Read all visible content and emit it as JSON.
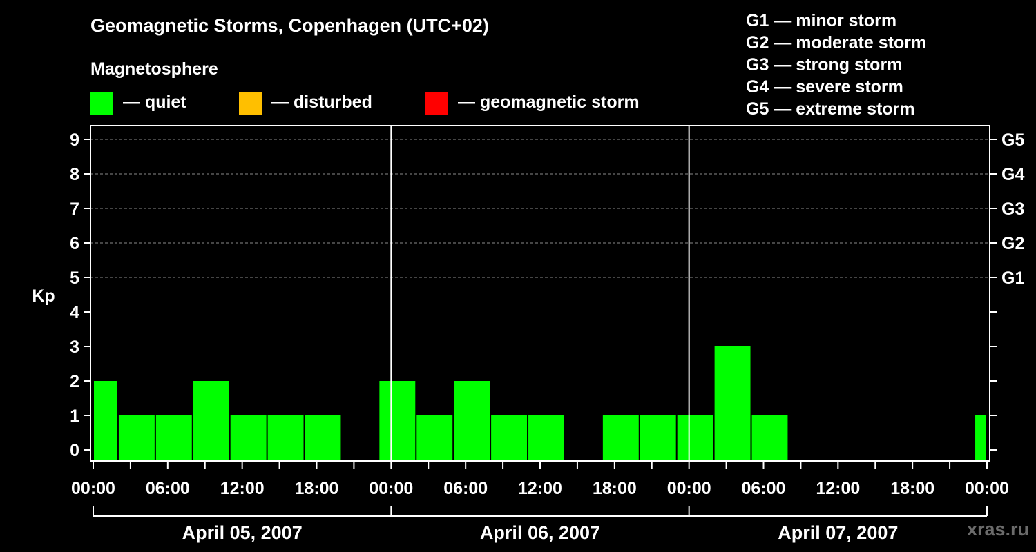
{
  "chart_data": {
    "type": "bar",
    "title": "Geomagnetic Storms, Copenhagen (UTC+02)",
    "subtitle": "Magnetosphere",
    "ylabel": "Kp",
    "ylim": [
      0,
      9
    ],
    "yticks": [
      "0",
      "1",
      "2",
      "3",
      "4",
      "5",
      "6",
      "7",
      "8",
      "9"
    ],
    "g_scale": [
      {
        "kp": 5,
        "label": "G1"
      },
      {
        "kp": 6,
        "label": "G2"
      },
      {
        "kp": 7,
        "label": "G3"
      },
      {
        "kp": 8,
        "label": "G4"
      },
      {
        "kp": 9,
        "label": "G5"
      }
    ],
    "xlim_hours": [
      0,
      72
    ],
    "xticks": [
      {
        "hour": 0,
        "label": "00:00"
      },
      {
        "hour": 6,
        "label": "06:00"
      },
      {
        "hour": 12,
        "label": "12:00"
      },
      {
        "hour": 18,
        "label": "18:00"
      },
      {
        "hour": 24,
        "label": "00:00"
      },
      {
        "hour": 30,
        "label": "06:00"
      },
      {
        "hour": 36,
        "label": "12:00"
      },
      {
        "hour": 42,
        "label": "18:00"
      },
      {
        "hour": 48,
        "label": "00:00"
      },
      {
        "hour": 54,
        "label": "06:00"
      },
      {
        "hour": 60,
        "label": "12:00"
      },
      {
        "hour": 66,
        "label": "18:00"
      },
      {
        "hour": 72,
        "label": "00:00"
      }
    ],
    "days": [
      "April 05, 2007",
      "April 06, 2007",
      "April 07, 2007"
    ],
    "bars": [
      {
        "start": 0,
        "end": 2,
        "kp": 2
      },
      {
        "start": 2,
        "end": 5,
        "kp": 1
      },
      {
        "start": 5,
        "end": 8,
        "kp": 1
      },
      {
        "start": 8,
        "end": 11,
        "kp": 2
      },
      {
        "start": 11,
        "end": 14,
        "kp": 1
      },
      {
        "start": 14,
        "end": 17,
        "kp": 1
      },
      {
        "start": 17,
        "end": 20,
        "kp": 1
      },
      {
        "start": 23,
        "end": 26,
        "kp": 2
      },
      {
        "start": 26,
        "end": 29,
        "kp": 1
      },
      {
        "start": 29,
        "end": 32,
        "kp": 2
      },
      {
        "start": 32,
        "end": 35,
        "kp": 1
      },
      {
        "start": 35,
        "end": 38,
        "kp": 1
      },
      {
        "start": 41,
        "end": 44,
        "kp": 1
      },
      {
        "start": 44,
        "end": 47,
        "kp": 1
      },
      {
        "start": 47,
        "end": 50,
        "kp": 1
      },
      {
        "start": 50,
        "end": 53,
        "kp": 3
      },
      {
        "start": 53,
        "end": 56,
        "kp": 1
      },
      {
        "start": 71,
        "end": 72,
        "kp": 1
      }
    ],
    "colors": {
      "quiet": "#00ff00",
      "disturbed": "#ffbf00",
      "storm": "#ff0000"
    }
  },
  "legend": {
    "quiet": "— quiet",
    "disturbed": "— disturbed",
    "storm": "— geomagnetic storm"
  },
  "g_legend": [
    "G1 — minor storm",
    "G2 — moderate storm",
    "G3 — strong storm",
    "G4 — severe storm",
    "G5 — extreme storm"
  ],
  "watermark": "xras.ru"
}
